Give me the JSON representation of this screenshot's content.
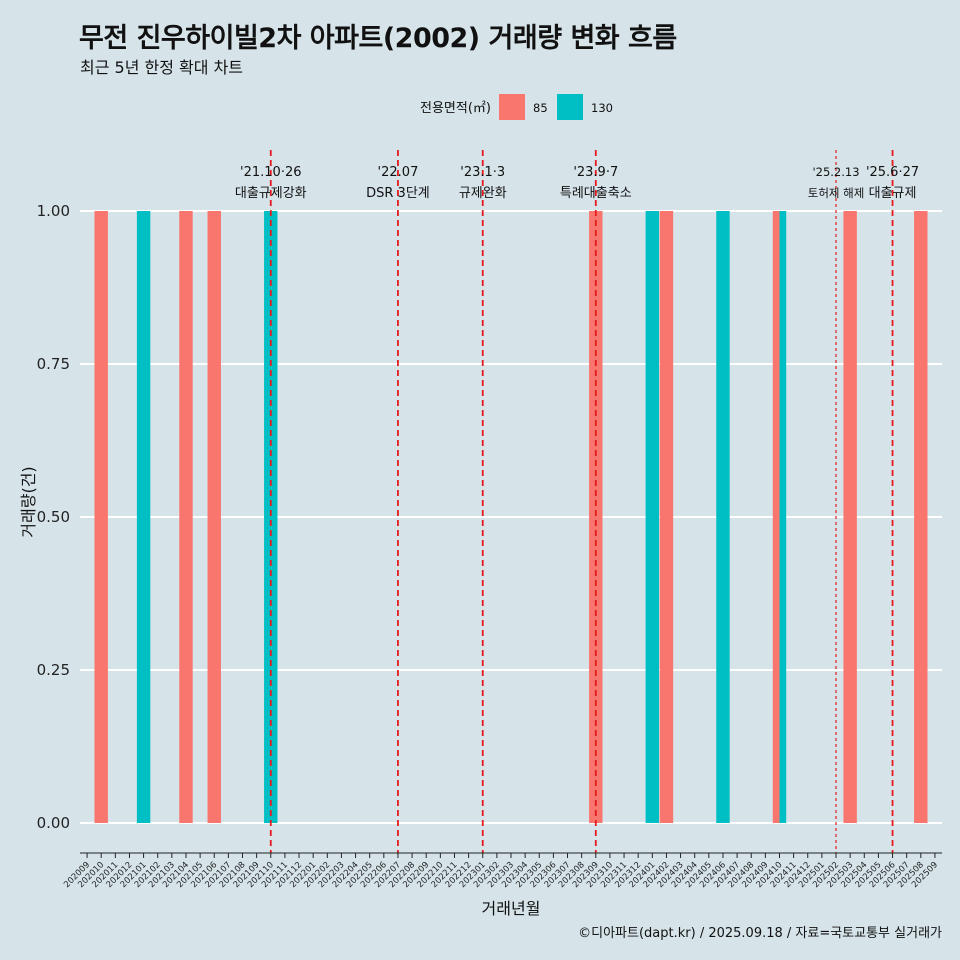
{
  "title": "무전 진우하이빌2차 아파트(2002) 거래량 변화 흐름",
  "subtitle": "최근 5년 한정 확대 차트",
  "caption": "©디아파트(dapt.kr) / 2025.09.18 / 자료=국토교통부 실거래가",
  "chart_data": {
    "type": "bar",
    "xlabel": "거래년월",
    "ylabel": "거래량(건)",
    "ylim": [
      0,
      1
    ],
    "y_ticks": [
      "0.00",
      "0.25",
      "0.50",
      "0.75",
      "1.00"
    ],
    "grid": true,
    "legend": {
      "title": "전용면적(㎡)",
      "position": "top"
    },
    "categories": [
      "202009",
      "202010",
      "202011",
      "202012",
      "202101",
      "202102",
      "202103",
      "202104",
      "202105",
      "202106",
      "202107",
      "202108",
      "202109",
      "202110",
      "202111",
      "202112",
      "202201",
      "202202",
      "202203",
      "202204",
      "202205",
      "202206",
      "202207",
      "202208",
      "202209",
      "202210",
      "202211",
      "202212",
      "202301",
      "202302",
      "202303",
      "202304",
      "202305",
      "202306",
      "202307",
      "202308",
      "202309",
      "202310",
      "202311",
      "202312",
      "202401",
      "202402",
      "202403",
      "202404",
      "202405",
      "202406",
      "202407",
      "202408",
      "202409",
      "202410",
      "202411",
      "202412",
      "202501",
      "202502",
      "202503",
      "202504",
      "202505",
      "202506",
      "202507",
      "202508",
      "202509"
    ],
    "series": [
      {
        "name": "85",
        "color": "#f8766d",
        "points": [
          {
            "x": "202010",
            "y": 1
          },
          {
            "x": "202104",
            "y": 1
          },
          {
            "x": "202106",
            "y": 1
          },
          {
            "x": "202309",
            "y": 1
          },
          {
            "x": "202402",
            "y": 1
          },
          {
            "x": "202410",
            "y": 1
          },
          {
            "x": "202503",
            "y": 1
          },
          {
            "x": "202508",
            "y": 1
          }
        ]
      },
      {
        "name": "130",
        "color": "#00bfc4",
        "points": [
          {
            "x": "202101",
            "y": 1
          },
          {
            "x": "202110",
            "y": 1
          },
          {
            "x": "202401",
            "y": 1
          },
          {
            "x": "202406",
            "y": 1
          },
          {
            "x": "202410",
            "y": 1
          }
        ]
      }
    ],
    "annotations": [
      {
        "x": "202110",
        "date": "'21.10·26",
        "label": "대출규제강화",
        "style": "dashed"
      },
      {
        "x": "202207",
        "date": "'22.07",
        "label": "DSR 3단계",
        "style": "dashed"
      },
      {
        "x": "202301",
        "date": "'23.1·3",
        "label": "규제완화",
        "style": "dashed"
      },
      {
        "x": "202309",
        "date": "'23.9·7",
        "label": "특례대출축소",
        "style": "dashed"
      },
      {
        "x": "202502",
        "date": "'25.2.13",
        "label": "토허제 해제",
        "style": "dotted"
      },
      {
        "x": "202506",
        "date": "'25.6·27",
        "label": "대출규제",
        "style": "dashed"
      }
    ]
  }
}
